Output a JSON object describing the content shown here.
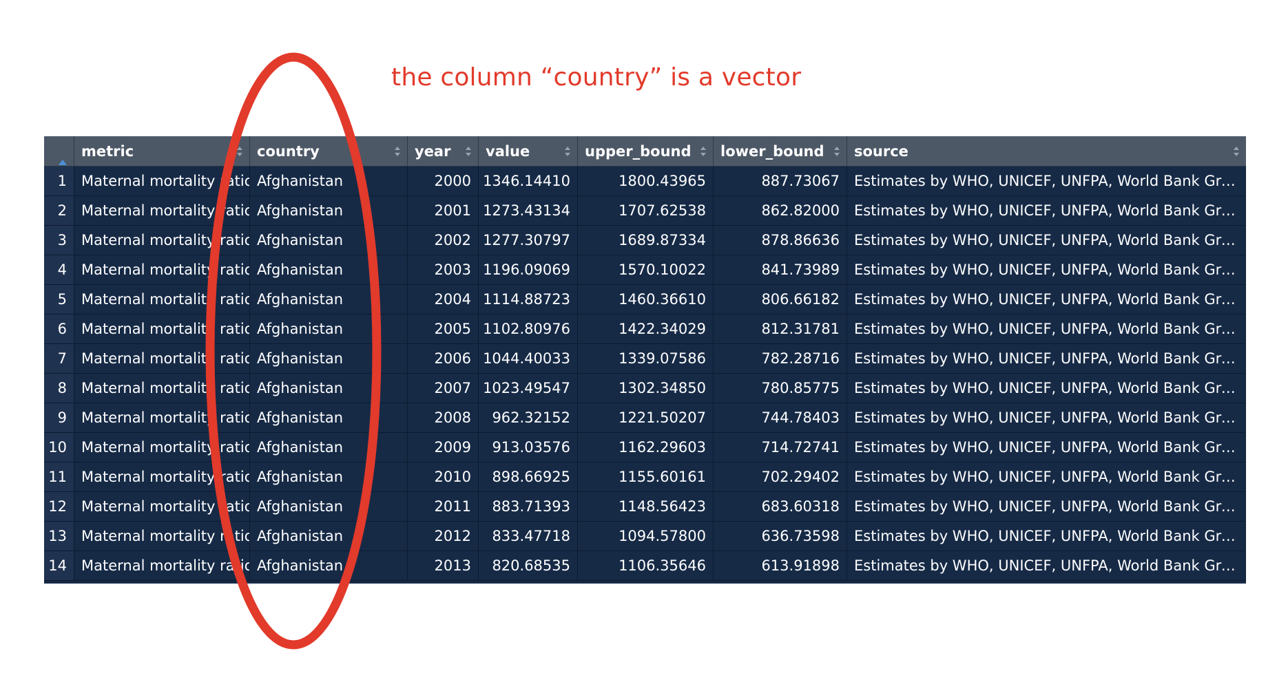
{
  "annotation": {
    "text": "the column “country” is a vector",
    "color": "#e23a2b"
  },
  "table": {
    "columns": [
      {
        "key": "metric",
        "label": "metric"
      },
      {
        "key": "country",
        "label": "country"
      },
      {
        "key": "year",
        "label": "year"
      },
      {
        "key": "value",
        "label": "value"
      },
      {
        "key": "upper_bound",
        "label": "upper_bound"
      },
      {
        "key": "lower_bound",
        "label": "lower_bound"
      },
      {
        "key": "source",
        "label": "source"
      }
    ],
    "rows": [
      {
        "n": "1",
        "metric": "Maternal mortality ratio",
        "country": "Afghanistan",
        "year": "2000",
        "value": "1346.14410",
        "upper_bound": "1800.43965",
        "lower_bound": "887.73067",
        "source": "Estimates by WHO, UNICEF, UNFPA, World Bank Group..."
      },
      {
        "n": "2",
        "metric": "Maternal mortality ratio",
        "country": "Afghanistan",
        "year": "2001",
        "value": "1273.43134",
        "upper_bound": "1707.62538",
        "lower_bound": "862.82000",
        "source": "Estimates by WHO, UNICEF, UNFPA, World Bank Group..."
      },
      {
        "n": "3",
        "metric": "Maternal mortality ratio",
        "country": "Afghanistan",
        "year": "2002",
        "value": "1277.30797",
        "upper_bound": "1689.87334",
        "lower_bound": "878.86636",
        "source": "Estimates by WHO, UNICEF, UNFPA, World Bank Group..."
      },
      {
        "n": "4",
        "metric": "Maternal mortality ratio",
        "country": "Afghanistan",
        "year": "2003",
        "value": "1196.09069",
        "upper_bound": "1570.10022",
        "lower_bound": "841.73989",
        "source": "Estimates by WHO, UNICEF, UNFPA, World Bank Group..."
      },
      {
        "n": "5",
        "metric": "Maternal mortality ratio",
        "country": "Afghanistan",
        "year": "2004",
        "value": "1114.88723",
        "upper_bound": "1460.36610",
        "lower_bound": "806.66182",
        "source": "Estimates by WHO, UNICEF, UNFPA, World Bank Group..."
      },
      {
        "n": "6",
        "metric": "Maternal mortality ratio",
        "country": "Afghanistan",
        "year": "2005",
        "value": "1102.80976",
        "upper_bound": "1422.34029",
        "lower_bound": "812.31781",
        "source": "Estimates by WHO, UNICEF, UNFPA, World Bank Group..."
      },
      {
        "n": "7",
        "metric": "Maternal mortality ratio",
        "country": "Afghanistan",
        "year": "2006",
        "value": "1044.40033",
        "upper_bound": "1339.07586",
        "lower_bound": "782.28716",
        "source": "Estimates by WHO, UNICEF, UNFPA, World Bank Group..."
      },
      {
        "n": "8",
        "metric": "Maternal mortality ratio",
        "country": "Afghanistan",
        "year": "2007",
        "value": "1023.49547",
        "upper_bound": "1302.34850",
        "lower_bound": "780.85775",
        "source": "Estimates by WHO, UNICEF, UNFPA, World Bank Group..."
      },
      {
        "n": "9",
        "metric": "Maternal mortality ratio",
        "country": "Afghanistan",
        "year": "2008",
        "value": "962.32152",
        "upper_bound": "1221.50207",
        "lower_bound": "744.78403",
        "source": "Estimates by WHO, UNICEF, UNFPA, World Bank Group..."
      },
      {
        "n": "10",
        "metric": "Maternal mortality ratio",
        "country": "Afghanistan",
        "year": "2009",
        "value": "913.03576",
        "upper_bound": "1162.29603",
        "lower_bound": "714.72741",
        "source": "Estimates by WHO, UNICEF, UNFPA, World Bank Group..."
      },
      {
        "n": "11",
        "metric": "Maternal mortality ratio",
        "country": "Afghanistan",
        "year": "2010",
        "value": "898.66925",
        "upper_bound": "1155.60161",
        "lower_bound": "702.29402",
        "source": "Estimates by WHO, UNICEF, UNFPA, World Bank Group..."
      },
      {
        "n": "12",
        "metric": "Maternal mortality ratio",
        "country": "Afghanistan",
        "year": "2011",
        "value": "883.71393",
        "upper_bound": "1148.56423",
        "lower_bound": "683.60318",
        "source": "Estimates by WHO, UNICEF, UNFPA, World Bank Group..."
      },
      {
        "n": "13",
        "metric": "Maternal mortality ratio",
        "country": "Afghanistan",
        "year": "2012",
        "value": "833.47718",
        "upper_bound": "1094.57800",
        "lower_bound": "636.73598",
        "source": "Estimates by WHO, UNICEF, UNFPA, World Bank Group..."
      },
      {
        "n": "14",
        "metric": "Maternal mortality ratio",
        "country": "Afghanistan",
        "year": "2013",
        "value": "820.68535",
        "upper_bound": "1106.35646",
        "lower_bound": "613.91898",
        "source": "Estimates by WHO, UNICEF, UNFPA, World Bank Group..."
      }
    ]
  },
  "colors": {
    "header_bg": "#4d5867",
    "body_bg": "#162a46",
    "rownum_bg": "#1f3250",
    "text": "#ffffff",
    "sort_arrow_active": "#4a90d9",
    "annotation_red": "#e23a2b"
  },
  "icons": {
    "sort_active": "sort-ascending-icon",
    "sort_inactive": "sort-both-icon"
  }
}
